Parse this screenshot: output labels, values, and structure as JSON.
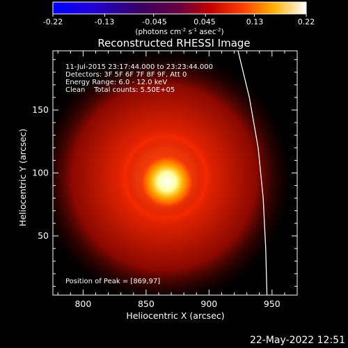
{
  "colorbar": {
    "ticks": [
      "-0.22",
      "-0.13",
      "-0.045",
      "0.045",
      "0.13",
      "0.22"
    ],
    "tick_values": [
      -0.22,
      -0.13,
      -0.045,
      0.045,
      0.13,
      0.22
    ],
    "range": [
      -0.22,
      0.22
    ],
    "units_main": "(photons cm",
    "units_exp1": "-2",
    "units_mid": " s",
    "units_exp2": "-1",
    "units_end": " asec",
    "units_exp3": "-2",
    "units_close": ")"
  },
  "chart_data": {
    "type": "heatmap",
    "title": "Reconstructed RHESSI Image",
    "xlabel": "Heliocentric X (arcsec)",
    "ylabel": "Heliocentric Y (arcsec)",
    "xlim": [
      776,
      970
    ],
    "ylim": [
      3,
      197
    ],
    "x_ticks": [
      800,
      850,
      900,
      950
    ],
    "y_ticks": [
      50,
      100,
      150
    ],
    "x_tick_labels": [
      "800",
      "850",
      "900",
      "950"
    ],
    "y_tick_labels": [
      "50",
      "100",
      "150"
    ],
    "peak": {
      "x": 869,
      "y": 97
    },
    "annotations": {
      "time_range": "11-Jul-2015 23:17:44.000 to 23:23:44.000",
      "detectors": "Detectors: 3F 5F 6F 7F 8F 9F, Att 0",
      "energy": "Energy Range: 6.0 - 12.0 keV",
      "clean": "Clean    Total counts: 5.50E+05",
      "peak_label": "Position of Peak = [869,97]"
    },
    "limb_curve": [
      [
        923,
        197
      ],
      [
        932,
        160
      ],
      [
        939,
        120
      ],
      [
        943,
        80
      ],
      [
        945,
        40
      ],
      [
        946,
        3
      ]
    ]
  },
  "footer": {
    "date": "22-May-2022 12:51"
  },
  "colors": {
    "limb": "#ffffff",
    "background": "#000000"
  }
}
